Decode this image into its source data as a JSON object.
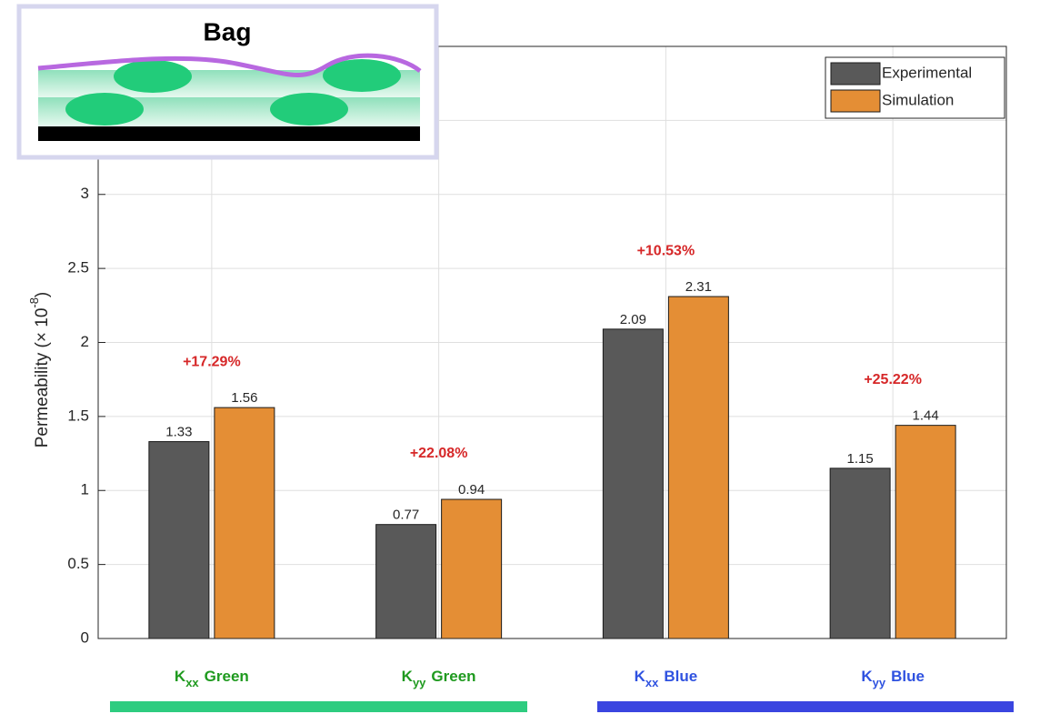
{
  "chart_data": {
    "type": "bar",
    "ylabel": {
      "text": "Permeability (× 10",
      "exponent": "-8",
      "close": ")"
    },
    "categories": [
      {
        "symbol": "K",
        "subscript": "xx",
        "label": "Green",
        "color": "#1f9a1f"
      },
      {
        "symbol": "K",
        "subscript": "yy",
        "label": "Green",
        "color": "#1f9a1f"
      },
      {
        "symbol": "K",
        "subscript": "xx",
        "label": "Blue",
        "color": "#2f52e0"
      },
      {
        "symbol": "K",
        "subscript": "yy",
        "label": "Blue",
        "color": "#2f52e0"
      }
    ],
    "series": [
      {
        "name": "Experimental",
        "color": "#595959",
        "values": [
          1.33,
          0.77,
          2.09,
          1.15
        ]
      },
      {
        "name": "Simulation",
        "color": "#e48e35",
        "values": [
          1.56,
          0.94,
          2.31,
          1.44
        ]
      }
    ],
    "annotations": [
      "+17.29%",
      "+22.08%",
      "+10.53%",
      "+25.22%"
    ],
    "annotation_color": "#d62728",
    "ylim": [
      0,
      4
    ],
    "yticks": [
      0,
      0.5,
      1,
      1.5,
      2,
      2.5,
      3,
      3.5,
      4
    ],
    "grid": true,
    "legend": "top-right",
    "inset": {
      "label": "Bag"
    }
  }
}
